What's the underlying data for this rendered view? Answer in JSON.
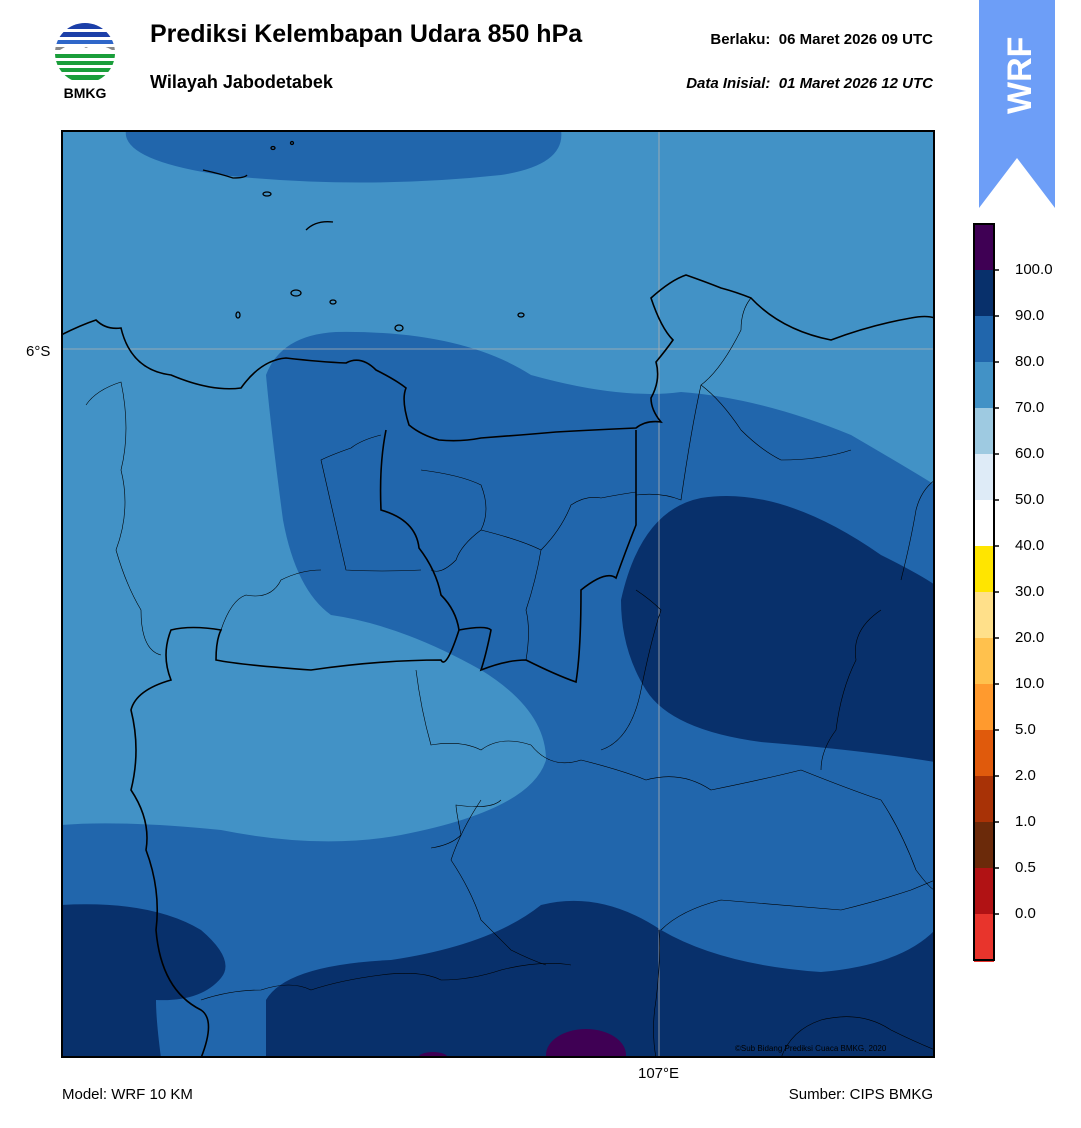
{
  "header": {
    "title": "Prediksi Kelembapan Udara 850 hPa",
    "subtitle": "Wilayah Jabodetabek",
    "valid_label": "Berlaku:",
    "valid_time": "06 Maret 2026 09 UTC",
    "init_label": "Data Inisial:",
    "init_time": "01 Maret 2026 12 UTC"
  },
  "logo": {
    "text": "BMKG",
    "icon": "bmkg-logo-icon"
  },
  "badge": {
    "text": "WRF",
    "color": "#6d9ef7"
  },
  "map": {
    "lat_label": "6°S",
    "lon_label": "107°E",
    "copyright": "©Sub Bidang Prediksi Cuaca BMKG, 2020",
    "fill_colors": {
      "70-80": "#4292c6",
      "80-90": "#2166ac",
      "90-100": "#08306b",
      "100+": "#3f0054"
    }
  },
  "colorbar": {
    "labels": [
      "100.0",
      "90.0",
      "80.0",
      "70.0",
      "60.0",
      "50.0",
      "40.0",
      "30.0",
      "20.0",
      "10.0",
      "5.0",
      "2.0",
      "1.0",
      "0.5",
      "0.0"
    ],
    "colors": [
      "#3f0054",
      "#08306b",
      "#2166ac",
      "#4292c6",
      "#9ecae1",
      "#deebf7",
      "#ffffff",
      "#ffe500",
      "#ffe08a",
      "#ffc14d",
      "#ff9a2e",
      "#e05a0c",
      "#a83206",
      "#6b2a0a",
      "#b11214",
      "#e8342c"
    ]
  },
  "footer": {
    "model": "Model: WRF 10 KM",
    "source": "Sumber: CIPS BMKG"
  }
}
